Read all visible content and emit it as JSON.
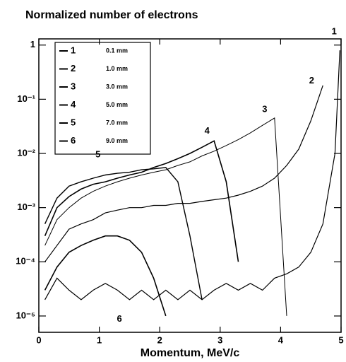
{
  "chart_data": {
    "type": "line",
    "title": "Normalized number of electrons",
    "x_label": "Momentum, MeV/c",
    "log_y": true,
    "color": "#000000",
    "xlim": [
      0,
      5
    ],
    "xticks": [
      0,
      1,
      2,
      3,
      4,
      5
    ],
    "ylim": [
      5e-06,
      1.3
    ],
    "yticks": [
      {
        "value": 1e-05,
        "label": "10⁻⁵"
      },
      {
        "value": 0.0001,
        "label": "10⁻⁴"
      },
      {
        "value": 0.001,
        "label": "10⁻³"
      },
      {
        "value": 0.01,
        "label": "10⁻²"
      },
      {
        "value": 0.1,
        "label": "10⁻¹"
      },
      1
    ],
    "x": [
      0.1,
      0.3,
      0.5,
      0.7,
      0.9,
      1.1,
      1.3,
      1.5,
      1.7,
      1.9,
      2.1,
      2.3,
      2.5,
      2.7,
      2.9,
      3.1,
      3.3,
      3.5,
      3.7,
      3.9,
      4.1,
      4.3,
      4.5,
      4.7,
      4.9,
      4.98
    ],
    "series": [
      {
        "name": "1",
        "thickness": "0.1 mm",
        "values": [
          2e-05,
          5e-05,
          3e-05,
          2e-05,
          3e-05,
          4e-05,
          3e-05,
          2e-05,
          3e-05,
          2e-05,
          3e-05,
          2e-05,
          3e-05,
          2e-05,
          3e-05,
          4e-05,
          3e-05,
          4e-05,
          3e-05,
          5e-05,
          6e-05,
          8e-05,
          0.00015,
          0.0005,
          0.01,
          0.8
        ]
      },
      {
        "name": "2",
        "thickness": "1.0 mm",
        "values": [
          0.0001,
          0.0002,
          0.0004,
          0.0005,
          0.0006,
          0.0008,
          0.0009,
          0.001,
          0.001,
          0.0011,
          0.0011,
          0.0012,
          0.0012,
          0.0013,
          0.0014,
          0.0015,
          0.0017,
          0.002,
          0.0025,
          0.0035,
          0.006,
          0.012,
          0.04,
          0.18,
          null,
          null
        ]
      },
      {
        "name": "3",
        "thickness": "3.0 mm",
        "values": [
          0.0002,
          0.0006,
          0.001,
          0.0015,
          0.002,
          0.0025,
          0.003,
          0.0035,
          0.004,
          0.0045,
          0.005,
          0.006,
          0.007,
          0.009,
          0.011,
          0.014,
          0.018,
          0.024,
          0.033,
          0.045,
          1e-05,
          null,
          null,
          null,
          null,
          null
        ]
      },
      {
        "name": "4",
        "thickness": "5.0 mm",
        "values": [
          0.0003,
          0.001,
          0.0016,
          0.0022,
          0.0027,
          0.003,
          0.0035,
          0.004,
          0.0045,
          0.0055,
          0.0065,
          0.008,
          0.01,
          0.013,
          0.017,
          0.003,
          0.0001,
          null,
          null,
          null,
          null,
          null,
          null,
          null,
          null,
          null
        ]
      },
      {
        "name": "5",
        "thickness": "7.0 mm",
        "values": [
          0.0005,
          0.0015,
          0.0025,
          0.003,
          0.0035,
          0.004,
          0.0043,
          0.0045,
          0.005,
          0.0052,
          0.0055,
          0.003,
          0.0003,
          2e-05,
          null,
          null,
          null,
          null,
          null,
          null,
          null,
          null,
          null,
          null,
          null,
          null
        ]
      },
      {
        "name": "6",
        "thickness": "9.0 mm",
        "values": [
          3e-05,
          8e-05,
          0.00015,
          0.0002,
          0.00025,
          0.0003,
          0.0003,
          0.00025,
          0.00015,
          5e-05,
          1e-05,
          null,
          null,
          null,
          null,
          null,
          null,
          null,
          null,
          null,
          null,
          null,
          null,
          null,
          null,
          null
        ]
      }
    ]
  }
}
